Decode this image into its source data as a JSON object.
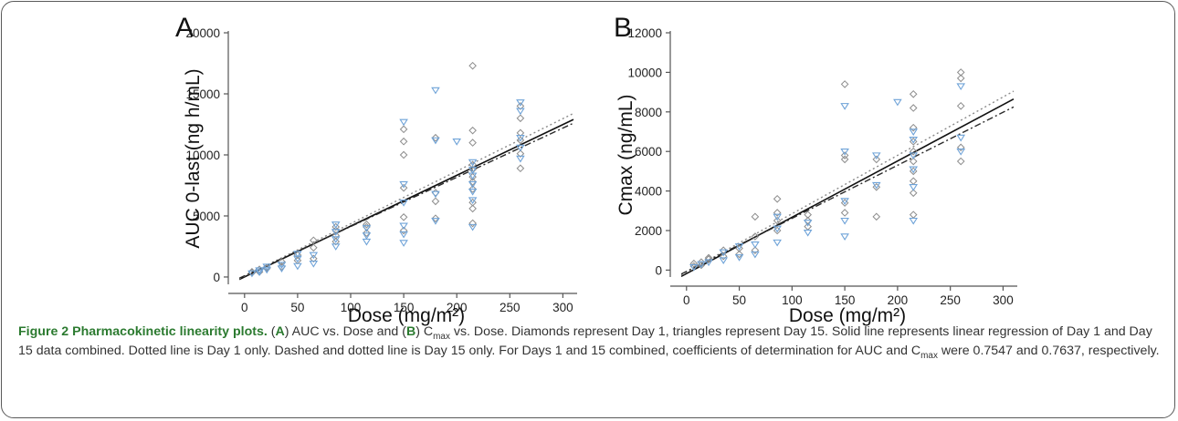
{
  "chart_data": [
    {
      "type": "scatter",
      "panel_label": "A",
      "xlabel": "Dose (mg/m²)",
      "ylabel": "AUC 0-last (ng h/mL)",
      "xlim": [
        -5,
        310
      ],
      "ylim": [
        -600,
        20000
      ],
      "x_ticks": [
        0,
        50,
        100,
        150,
        200,
        250,
        300
      ],
      "y_ticks": [
        0,
        5000,
        10000,
        15000,
        20000
      ],
      "series": [
        {
          "marker": "diamond",
          "color": "#8c8c8c",
          "points": [
            [
              7,
              350
            ],
            [
              7,
              420
            ],
            [
              14,
              420
            ],
            [
              14,
              620
            ],
            [
              21,
              700
            ],
            [
              21,
              780
            ],
            [
              35,
              850
            ],
            [
              35,
              1250
            ],
            [
              50,
              1350
            ],
            [
              50,
              1800
            ],
            [
              65,
              1500
            ],
            [
              65,
              2400
            ],
            [
              65,
              3000
            ],
            [
              86,
              2900
            ],
            [
              86,
              3400
            ],
            [
              86,
              3800
            ],
            [
              86,
              4100
            ],
            [
              115,
              3600
            ],
            [
              115,
              4100
            ],
            [
              115,
              4300
            ],
            [
              150,
              3800
            ],
            [
              150,
              4900
            ],
            [
              150,
              7300
            ],
            [
              150,
              10000
            ],
            [
              150,
              11100
            ],
            [
              150,
              12100
            ],
            [
              180,
              4800
            ],
            [
              180,
              6200
            ],
            [
              180,
              6900
            ],
            [
              180,
              11400
            ],
            [
              215,
              4400
            ],
            [
              215,
              5600
            ],
            [
              215,
              6100
            ],
            [
              215,
              7200
            ],
            [
              215,
              7800
            ],
            [
              215,
              8200
            ],
            [
              215,
              8800
            ],
            [
              215,
              9200
            ],
            [
              215,
              11000
            ],
            [
              215,
              12000
            ],
            [
              215,
              17300
            ],
            [
              260,
              8900
            ],
            [
              260,
              10100
            ],
            [
              260,
              11200
            ],
            [
              260,
              11800
            ],
            [
              260,
              13000
            ],
            [
              260,
              14000
            ]
          ]
        },
        {
          "marker": "triangle",
          "color": "#6fa3d8",
          "points": [
            [
              7,
              300
            ],
            [
              14,
              400
            ],
            [
              14,
              550
            ],
            [
              21,
              600
            ],
            [
              21,
              850
            ],
            [
              35,
              700
            ],
            [
              35,
              1000
            ],
            [
              50,
              900
            ],
            [
              50,
              1500
            ],
            [
              50,
              1900
            ],
            [
              65,
              1100
            ],
            [
              65,
              1800
            ],
            [
              86,
              2500
            ],
            [
              86,
              3100
            ],
            [
              86,
              3700
            ],
            [
              86,
              4300
            ],
            [
              115,
              2900
            ],
            [
              115,
              3400
            ],
            [
              115,
              4000
            ],
            [
              150,
              2800
            ],
            [
              150,
              3500
            ],
            [
              150,
              4200
            ],
            [
              150,
              6100
            ],
            [
              150,
              7600
            ],
            [
              150,
              12700
            ],
            [
              180,
              4600
            ],
            [
              180,
              6800
            ],
            [
              180,
              11200
            ],
            [
              180,
              15300
            ],
            [
              200,
              11100
            ],
            [
              215,
              4100
            ],
            [
              215,
              6300
            ],
            [
              215,
              7000
            ],
            [
              215,
              7600
            ],
            [
              215,
              8300
            ],
            [
              215,
              8800
            ],
            [
              215,
              9400
            ],
            [
              260,
              9700
            ],
            [
              260,
              10600
            ],
            [
              260,
              11400
            ],
            [
              260,
              13600
            ],
            [
              260,
              14300
            ]
          ]
        }
      ],
      "lines": [
        {
          "style": "solid",
          "color": "#111111",
          "x": [
            -5,
            310
          ],
          "y": [
            -200,
            12900
          ]
        },
        {
          "style": "dotted",
          "color": "#8a8a8a",
          "x": [
            -5,
            310
          ],
          "y": [
            -150,
            13400
          ]
        },
        {
          "style": "dashdot",
          "color": "#2a2a2a",
          "x": [
            -5,
            310
          ],
          "y": [
            -100,
            12600
          ]
        }
      ]
    },
    {
      "type": "scatter",
      "panel_label": "B",
      "xlabel": "Dose (mg/m²)",
      "ylabel": "Cmax (ng/mL)",
      "xlim": [
        -5,
        310
      ],
      "ylim": [
        -350,
        12000
      ],
      "x_ticks": [
        0,
        50,
        100,
        150,
        200,
        250,
        300
      ],
      "y_ticks": [
        0,
        2000,
        4000,
        6000,
        8000,
        10000,
        12000
      ],
      "series": [
        {
          "marker": "diamond",
          "color": "#8c8c8c",
          "points": [
            [
              7,
              200
            ],
            [
              7,
              330
            ],
            [
              14,
              250
            ],
            [
              14,
              400
            ],
            [
              21,
              550
            ],
            [
              21,
              620
            ],
            [
              35,
              700
            ],
            [
              35,
              1000
            ],
            [
              50,
              800
            ],
            [
              50,
              1100
            ],
            [
              65,
              1000
            ],
            [
              65,
              1700
            ],
            [
              65,
              2700
            ],
            [
              86,
              2000
            ],
            [
              86,
              2500
            ],
            [
              86,
              2900
            ],
            [
              86,
              3600
            ],
            [
              115,
              2200
            ],
            [
              115,
              2500
            ],
            [
              115,
              2800
            ],
            [
              150,
              2900
            ],
            [
              150,
              3400
            ],
            [
              150,
              5600
            ],
            [
              150,
              5800
            ],
            [
              150,
              9400
            ],
            [
              180,
              2700
            ],
            [
              180,
              4200
            ],
            [
              180,
              5600
            ],
            [
              215,
              2800
            ],
            [
              215,
              3900
            ],
            [
              215,
              4500
            ],
            [
              215,
              5000
            ],
            [
              215,
              5500
            ],
            [
              215,
              6000
            ],
            [
              215,
              6500
            ],
            [
              215,
              7200
            ],
            [
              215,
              8200
            ],
            [
              215,
              8900
            ],
            [
              260,
              5500
            ],
            [
              260,
              6200
            ],
            [
              260,
              8300
            ],
            [
              260,
              9700
            ],
            [
              260,
              10000
            ]
          ]
        },
        {
          "marker": "triangle",
          "color": "#6fa3d8",
          "points": [
            [
              7,
              150
            ],
            [
              14,
              300
            ],
            [
              21,
              400
            ],
            [
              35,
              500
            ],
            [
              35,
              900
            ],
            [
              50,
              650
            ],
            [
              50,
              1200
            ],
            [
              65,
              800
            ],
            [
              65,
              1300
            ],
            [
              86,
              1400
            ],
            [
              86,
              2100
            ],
            [
              86,
              2700
            ],
            [
              115,
              1900
            ],
            [
              115,
              2400
            ],
            [
              150,
              1700
            ],
            [
              150,
              2500
            ],
            [
              150,
              3500
            ],
            [
              150,
              6000
            ],
            [
              150,
              8300
            ],
            [
              180,
              4300
            ],
            [
              180,
              5800
            ],
            [
              200,
              8500
            ],
            [
              215,
              2500
            ],
            [
              215,
              4200
            ],
            [
              215,
              5100
            ],
            [
              215,
              5800
            ],
            [
              215,
              6600
            ],
            [
              215,
              7000
            ],
            [
              260,
              6000
            ],
            [
              260,
              6700
            ],
            [
              260,
              9300
            ]
          ]
        }
      ],
      "lines": [
        {
          "style": "solid",
          "color": "#111111",
          "x": [
            -5,
            310
          ],
          "y": [
            -320,
            8650
          ]
        },
        {
          "style": "dotted",
          "color": "#8a8a8a",
          "x": [
            -5,
            310
          ],
          "y": [
            -250,
            9050
          ]
        },
        {
          "style": "dashdot",
          "color": "#2a2a2a",
          "x": [
            -5,
            310
          ],
          "y": [
            -200,
            8250
          ]
        }
      ]
    }
  ],
  "caption": {
    "title": "Figure 2 Pharmacokinetic linearity plots.",
    "a_label": "A",
    "b_label": "B",
    "t1": " AUC vs. Dose and (",
    "t2": ") C",
    "sub_max1": "max",
    "t3": " vs. Dose. Diamonds represent Day 1, triangles represent Day 15. Solid line represents linear regression of Day 1 and Day 15 data combined. Dotted line is Day 1 only. Dashed and dotted line is Day 15 only. For Days 1 and 15 combined, coefficients of determination for AUC and C",
    "sub_max2": "max",
    "t4": " were 0.7547 and 0.7637, respectively."
  }
}
